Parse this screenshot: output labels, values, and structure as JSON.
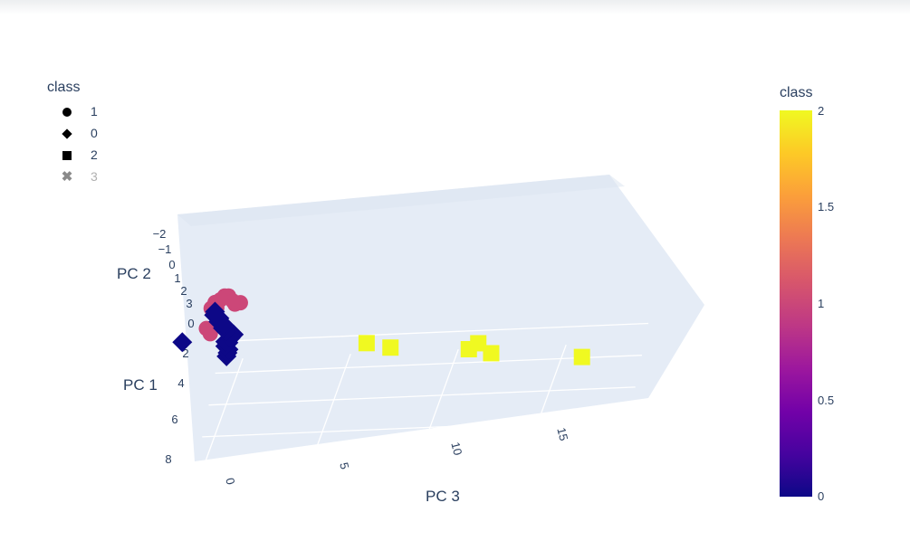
{
  "legend": {
    "title": "class",
    "items": [
      {
        "label": "1",
        "symbol": "circle",
        "visible": true
      },
      {
        "label": "0",
        "symbol": "diamond",
        "visible": true
      },
      {
        "label": "2",
        "symbol": "square",
        "visible": true
      },
      {
        "label": "3",
        "symbol": "x",
        "visible": false
      }
    ]
  },
  "colorbar": {
    "title": "class",
    "range": [
      0,
      2
    ],
    "ticks": [
      "2",
      "1.5",
      "1",
      "0.5",
      "0"
    ],
    "colorscale": [
      "#0d0887",
      "#46039f",
      "#7201a8",
      "#9c179e",
      "#bd3786",
      "#d8576b",
      "#ed7953",
      "#fb9f3a",
      "#fdca26",
      "#f0f921"
    ]
  },
  "chart_data": {
    "type": "scatter",
    "dimensions": 3,
    "axes": {
      "x": {
        "label": "PC 1",
        "ticks": [
          "0",
          "2",
          "4",
          "6",
          "8"
        ]
      },
      "y": {
        "label": "PC 2",
        "ticks": [
          "−2",
          "−1",
          "0",
          "1",
          "2",
          "3"
        ]
      },
      "z": {
        "label": "PC 3",
        "ticks": [
          "0",
          "5",
          "10",
          "15"
        ]
      }
    },
    "scene_background": "#e5ecf6",
    "grid": true,
    "series": [
      {
        "name": "1",
        "symbol": "circle",
        "color": "#cc4778",
        "points": [
          {
            "pc1": 0.3,
            "pc2": 1.9,
            "pc3": 0.5
          },
          {
            "pc1": 0.5,
            "pc2": 2.1,
            "pc3": 0.8
          },
          {
            "pc1": 0.6,
            "pc2": 2.5,
            "pc3": 0.3
          },
          {
            "pc1": 1.0,
            "pc2": 2.8,
            "pc3": 0.2
          },
          {
            "pc1": 1.2,
            "pc2": 2.7,
            "pc3": 0.6
          },
          {
            "pc1": 1.5,
            "pc2": 3.0,
            "pc3": 0.1
          },
          {
            "pc1": 1.8,
            "pc2": 3.1,
            "pc3": -0.1
          },
          {
            "pc1": 2.0,
            "pc2": 3.0,
            "pc3": 0.0
          },
          {
            "pc1": 2.3,
            "pc2": 3.2,
            "pc3": -0.2
          },
          {
            "pc1": 3.7,
            "pc2": 3.3,
            "pc3": -0.2
          },
          {
            "pc1": 3.9,
            "pc2": 3.2,
            "pc3": 0.0
          }
        ]
      },
      {
        "name": "0",
        "symbol": "diamond",
        "color": "#0d0887",
        "points": [
          {
            "pc1": -1.8,
            "pc2": -2.0,
            "pc3": -0.5
          },
          {
            "pc1": -1.6,
            "pc2": -1.7,
            "pc3": -0.4
          },
          {
            "pc1": -1.4,
            "pc2": -1.4,
            "pc3": -0.3
          },
          {
            "pc1": -1.2,
            "pc2": -1.1,
            "pc3": -0.4
          },
          {
            "pc1": -1.0,
            "pc2": -0.8,
            "pc3": -0.2
          },
          {
            "pc1": -0.8,
            "pc2": -0.6,
            "pc3": -0.3
          },
          {
            "pc1": -0.6,
            "pc2": -0.3,
            "pc3": 0.0
          },
          {
            "pc1": -0.4,
            "pc2": 0.0,
            "pc3": 0.2
          },
          {
            "pc1": -0.2,
            "pc2": 0.3,
            "pc3": -0.1
          },
          {
            "pc1": 0.0,
            "pc2": 0.6,
            "pc3": -0.2
          },
          {
            "pc1": 0.2,
            "pc2": 0.9,
            "pc3": -0.1
          },
          {
            "pc1": 0.4,
            "pc2": 1.2,
            "pc3": -0.3
          },
          {
            "pc1": 0.6,
            "pc2": 1.5,
            "pc3": -0.2
          },
          {
            "pc1": 0.8,
            "pc2": 1.8,
            "pc3": -0.4
          },
          {
            "pc1": 1.0,
            "pc2": 2.1,
            "pc3": -0.3
          },
          {
            "pc1": 4.5,
            "pc2": 3.3,
            "pc3": -1.2
          }
        ]
      },
      {
        "name": "2",
        "symbol": "square",
        "color": "#f0f921",
        "points": [
          {
            "pc1": 0.5,
            "pc2": 0.0,
            "pc3": 6.5
          },
          {
            "pc1": 2.5,
            "pc2": 1.2,
            "pc3": 8.0
          },
          {
            "pc1": -0.5,
            "pc2": -1.2,
            "pc3": 11.0
          },
          {
            "pc1": -0.3,
            "pc2": -0.8,
            "pc3": 11.5
          },
          {
            "pc1": -0.6,
            "pc2": -1.5,
            "pc3": 12.0
          },
          {
            "pc1": -1.5,
            "pc2": -2.5,
            "pc3": 16.0
          }
        ]
      },
      {
        "name": "3",
        "symbol": "x",
        "color": "#8a8a8a",
        "visible": false,
        "points": []
      }
    ]
  }
}
